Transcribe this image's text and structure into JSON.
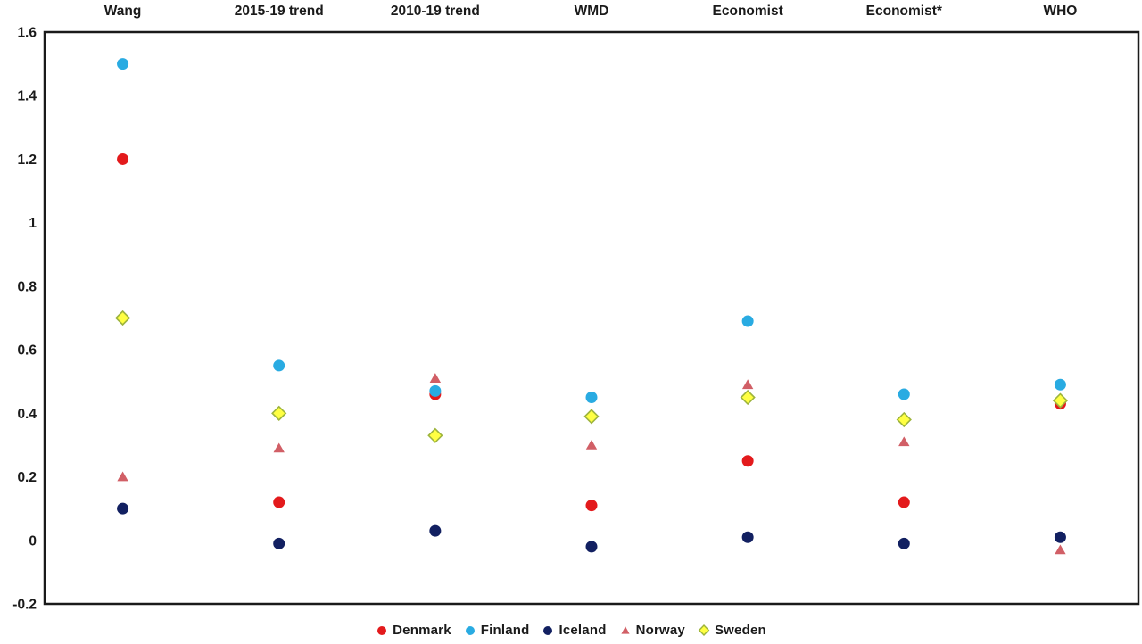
{
  "chart_data": {
    "type": "scatter",
    "title": "",
    "xlabel": "",
    "ylabel": "",
    "categories": [
      "Wang",
      "2015-19 trend",
      "2010-19 trend",
      "WMD",
      "Economist",
      "Economist*",
      "WHO"
    ],
    "series": [
      {
        "name": "Denmark",
        "marker": "circle",
        "color": "#E31A1C",
        "values": [
          1.2,
          0.12,
          0.46,
          0.11,
          0.25,
          0.12,
          0.43
        ]
      },
      {
        "name": "Finland",
        "marker": "circle",
        "color": "#29ABE2",
        "values": [
          1.5,
          0.55,
          0.47,
          0.45,
          0.69,
          0.46,
          0.49
        ]
      },
      {
        "name": "Iceland",
        "marker": "circle",
        "color": "#122061",
        "values": [
          0.1,
          -0.01,
          0.03,
          -0.02,
          0.01,
          -0.01,
          0.01
        ]
      },
      {
        "name": "Norway",
        "marker": "triangle",
        "color": "#D15F66",
        "values": [
          0.2,
          0.29,
          0.51,
          0.3,
          0.49,
          0.31,
          -0.03
        ]
      },
      {
        "name": "Sweden",
        "marker": "diamond",
        "color": "#FFFF42",
        "stroke": "#9DB43C",
        "values": [
          0.7,
          0.4,
          0.33,
          0.39,
          0.45,
          0.38,
          0.44
        ]
      }
    ],
    "draw_order": [
      "Denmark",
      "Norway",
      "Finland",
      "Iceland",
      "Sweden"
    ],
    "y_tick_labels": [
      "1.6",
      "1.4",
      "1.2",
      "1",
      "0.8",
      "0.6",
      "0.4",
      "0.2",
      "0",
      "-0.2"
    ],
    "y_tick_values": [
      1.6,
      1.4,
      1.2,
      1.0,
      0.8,
      0.6,
      0.4,
      0.2,
      0.0,
      -0.2
    ],
    "ylim": [
      -0.2,
      1.6
    ],
    "grid": false,
    "legend_position": "bottom",
    "legend_entries": [
      "Denmark",
      "Finland",
      "Iceland",
      "Norway",
      "Sweden"
    ],
    "colors": {
      "axis": "#1a1a1a",
      "text": "#1a1a1a",
      "background": "#ffffff"
    }
  }
}
